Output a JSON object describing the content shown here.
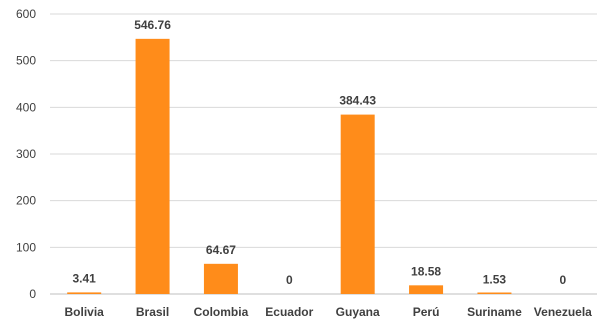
{
  "chart_data": {
    "type": "bar",
    "title": "",
    "xlabel": "",
    "ylabel": "",
    "categories": [
      "Bolivia",
      "Brasil",
      "Colombia",
      "Ecuador",
      "Guyana",
      "Perú",
      "Suriname",
      "Venezuela"
    ],
    "values": [
      3.41,
      546.76,
      64.67,
      0,
      384.43,
      18.58,
      1.53,
      0
    ],
    "data_labels": [
      "3.41",
      "546.76",
      "64.67",
      "0",
      "384.43",
      "18.58",
      "1.53",
      "0"
    ],
    "ylim": [
      0,
      600
    ],
    "yticks": [
      0,
      100,
      200,
      300,
      400,
      500,
      600
    ],
    "ytick_labels": [
      "0",
      "100",
      "200",
      "300",
      "400",
      "500",
      "600"
    ],
    "grid": true,
    "legend": "none",
    "colors": {
      "bar": "#ff8c1a",
      "grid": "#d9d9d9",
      "text": "#404040"
    }
  }
}
